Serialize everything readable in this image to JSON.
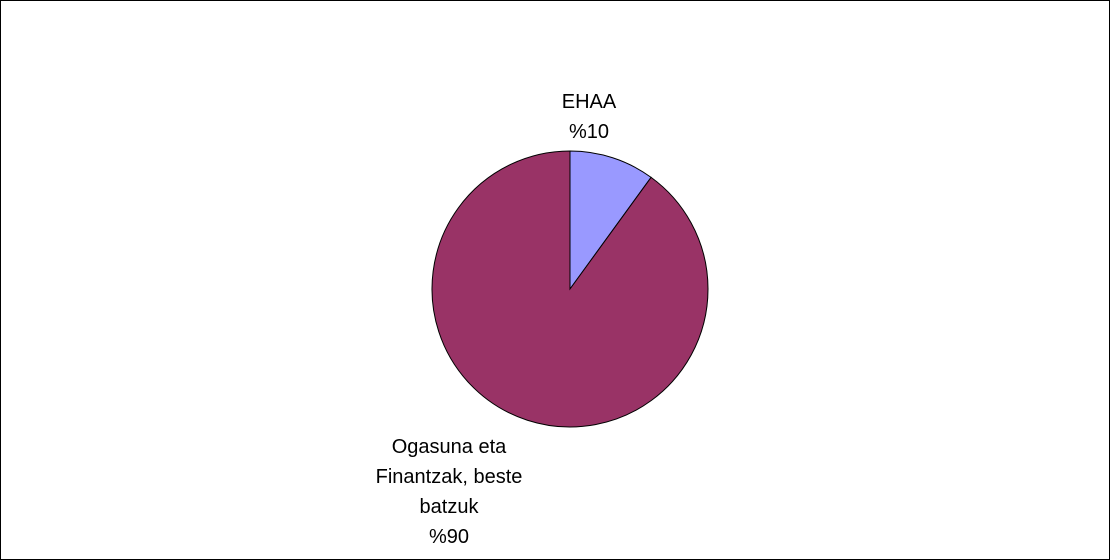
{
  "chart_data": {
    "type": "pie",
    "title": "",
    "slices": [
      {
        "name": "EHAA",
        "label_lines": [
          "EHAA"
        ],
        "percent_label": "%10",
        "value": 10,
        "color": "#9999FF"
      },
      {
        "name": "Ogasuna eta Finantzak, beste batzuk",
        "label_lines": [
          "Ogasuna eta",
          "Finantzak, beste",
          "batzuk"
        ],
        "percent_label": "%90",
        "value": 90,
        "color": "#993366"
      }
    ],
    "start_angle_deg": 0,
    "direction": "clockwise",
    "border_color": "#000000",
    "legend": "none"
  }
}
